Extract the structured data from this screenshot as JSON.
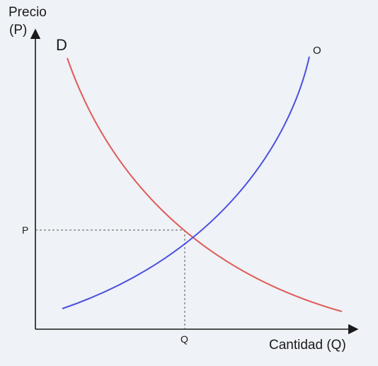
{
  "axes": {
    "y_title": "Precio",
    "y_symbol": "(P)",
    "x_title": "Cantidad (Q)"
  },
  "curves": {
    "demand_label": "D",
    "supply_label": "O"
  },
  "equilibrium": {
    "price_label": "P",
    "quantity_label": "Q"
  },
  "colors": {
    "demand": "#e05a5a",
    "supply": "#4b4fe0",
    "axis": "#1a1a1a",
    "guide": "#555555",
    "background": "#eff2f6"
  }
}
